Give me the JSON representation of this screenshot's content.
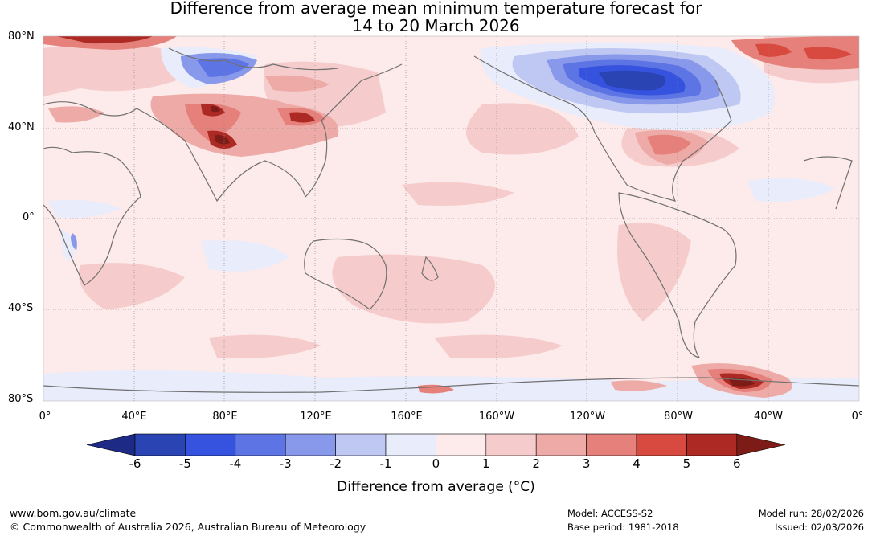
{
  "title": {
    "line1": "Difference from average mean minimum temperature forecast for",
    "line2": "14 to 20 March 2026"
  },
  "map": {
    "lat_labels": [
      "80°N",
      "40°N",
      "0°",
      "40°S",
      "80°S"
    ],
    "lon_labels": [
      "0°",
      "40°E",
      "80°E",
      "120°E",
      "160°E",
      "160°W",
      "120°W",
      "80°W",
      "40°W",
      "0°"
    ],
    "colors": {
      "grid": "#8a8a8a",
      "coast": "#707070",
      "land": "#8a8a8a"
    }
  },
  "colorbar": {
    "ticks": [
      "-6",
      "-5",
      "-4",
      "-3",
      "-2",
      "-1",
      "0",
      "1",
      "2",
      "3",
      "4",
      "5",
      "6"
    ],
    "colors": [
      "#1d2a86",
      "#2a44b4",
      "#3553de",
      "#5d75e4",
      "#8898ea",
      "#bfc8f2",
      "#e9ecfb",
      "#fdeaea",
      "#f5cccb",
      "#edaaa6",
      "#e5807b",
      "#d84a3f",
      "#ad2a24",
      "#7d1c17"
    ],
    "label": "Difference from average (°C)"
  },
  "footer": {
    "website": "www.bom.gov.au/climate",
    "copyright": "© Commonwealth of Australia 2026, Australian Bureau of Meteorology",
    "model": "Model: ACCESS-S2",
    "base_period": "Base period: 1981-2018",
    "model_run": "Model run: 28/02/2026",
    "issued": "Issued: 02/03/2026"
  }
}
